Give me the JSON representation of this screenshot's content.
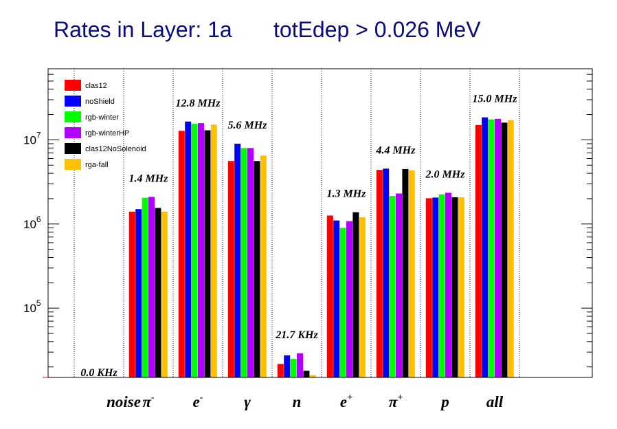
{
  "chart_data": {
    "type": "bar",
    "title_left": "Rates in Layer: 1a",
    "title_right": "totEdep > 0.026 MeV",
    "yscale": "log",
    "ylim": [
      15000,
      70000000
    ],
    "categories": [
      {
        "base": "noise",
        "sup": ""
      },
      {
        "base": "π",
        "sup": "-"
      },
      {
        "base": "e",
        "sup": "-"
      },
      {
        "base": "γ",
        "sup": ""
      },
      {
        "base": "n",
        "sup": ""
      },
      {
        "base": "e",
        "sup": "+"
      },
      {
        "base": "π",
        "sup": "+"
      },
      {
        "base": "p",
        "sup": ""
      },
      {
        "base": "all",
        "sup": ""
      }
    ],
    "rate_labels": [
      "0.0 KHz",
      "1.4 MHz",
      "12.8 MHz",
      "5.6 MHz",
      "21.7 KHz",
      "1.3 MHz",
      "4.4 MHz",
      "2.0 MHz",
      "15.0 MHz"
    ],
    "yticks": [
      {
        "value": 100000,
        "base": "10",
        "exp": "5"
      },
      {
        "value": 1000000,
        "base": "10",
        "exp": "6"
      },
      {
        "value": 10000000,
        "base": "10",
        "exp": "7"
      }
    ],
    "legend_position": "top-left",
    "series": [
      {
        "name": "clas12",
        "color": "#ff0000",
        "values": [
          0,
          1400000,
          12800000,
          5600000,
          21700,
          1260000,
          4400000,
          2020000,
          15000000
        ]
      },
      {
        "name": "noShield",
        "color": "#0000ff",
        "values": [
          0,
          1500000,
          16500000,
          9000000,
          27500,
          1100000,
          4550000,
          2060000,
          18500000
        ]
      },
      {
        "name": "rgb-winter",
        "color": "#00ff00",
        "values": [
          0,
          2050000,
          15500000,
          8000000,
          25000,
          900000,
          2150000,
          2250000,
          17500000
        ]
      },
      {
        "name": "rgb-winterHP",
        "color": "#b000ff",
        "values": [
          0,
          2100000,
          15800000,
          8000000,
          29000,
          1080000,
          2300000,
          2350000,
          17800000
        ]
      },
      {
        "name": "clas12NoSolenoid",
        "color": "#000000",
        "values": [
          0,
          1550000,
          13000000,
          5600000,
          18000,
          1380000,
          4500000,
          2080000,
          16000000
        ]
      },
      {
        "name": "rga-fall",
        "color": "#ffc000",
        "values": [
          0,
          1400000,
          15200000,
          6500000,
          16000,
          1200000,
          4350000,
          2080000,
          17200000
        ]
      }
    ]
  }
}
